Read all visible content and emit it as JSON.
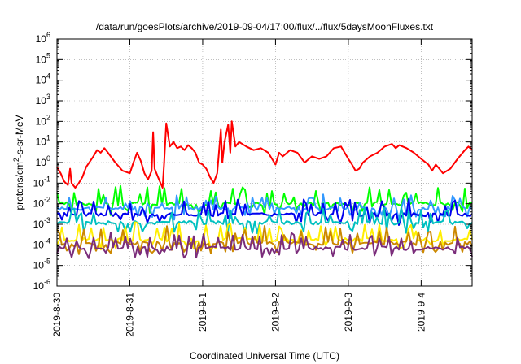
{
  "chart_data": {
    "type": "line",
    "title": "/data/run/goesPlots/archive/2019-09-04/17:00/flux/../flux/5daysMoonFluxes.txt",
    "xlabel": "Coordinated Universal Time (UTC)",
    "ylabel": {
      "pre": "protons/cm",
      "sup": "2",
      "post": "-s-sr-MeV"
    },
    "log_y": true,
    "ylim_exp": [
      -6,
      6
    ],
    "y_tick_exponents": [
      -6,
      -5,
      -4,
      -3,
      -2,
      -1,
      0,
      1,
      2,
      3,
      4,
      5,
      6
    ],
    "y_tick_base": "10",
    "x_ticks": [
      {
        "day": 0,
        "label": "2019-8-30"
      },
      {
        "day": 1,
        "label": "2019-8-31"
      },
      {
        "day": 2,
        "label": "2019-9-1"
      },
      {
        "day": 3,
        "label": "2019-9-2"
      },
      {
        "day": 4,
        "label": "2019-9-3"
      },
      {
        "day": 5,
        "label": "2019-9-4"
      }
    ],
    "x_range_days": [
      0,
      5.7
    ],
    "grid": true,
    "series": [
      {
        "color": "#ff0000",
        "width": 2,
        "points": [
          [
            0.0,
            0.6
          ],
          [
            0.05,
            0.3
          ],
          [
            0.1,
            0.12
          ],
          [
            0.15,
            0.08
          ],
          [
            0.18,
            0.5
          ],
          [
            0.2,
            0.1
          ],
          [
            0.25,
            0.06
          ],
          [
            0.3,
            0.1
          ],
          [
            0.35,
            0.2
          ],
          [
            0.4,
            0.6
          ],
          [
            0.5,
            2
          ],
          [
            0.55,
            4
          ],
          [
            0.6,
            3
          ],
          [
            0.65,
            5
          ],
          [
            0.7,
            3
          ],
          [
            0.8,
            1
          ],
          [
            0.9,
            0.4
          ],
          [
            1.0,
            0.3
          ],
          [
            1.05,
            1
          ],
          [
            1.1,
            3
          ],
          [
            1.15,
            1.2
          ],
          [
            1.2,
            0.3
          ],
          [
            1.25,
            0.15
          ],
          [
            1.3,
            0.4
          ],
          [
            1.32,
            30
          ],
          [
            1.34,
            0.5
          ],
          [
            1.4,
            0.15
          ],
          [
            1.45,
            0.06
          ],
          [
            1.47,
            0.8
          ],
          [
            1.5,
            80
          ],
          [
            1.55,
            6
          ],
          [
            1.6,
            10
          ],
          [
            1.65,
            5
          ],
          [
            1.7,
            6
          ],
          [
            1.75,
            4
          ],
          [
            1.8,
            7
          ],
          [
            1.85,
            5
          ],
          [
            1.9,
            3
          ],
          [
            1.95,
            1
          ],
          [
            2.0,
            0.8
          ],
          [
            2.05,
            0.5
          ],
          [
            2.1,
            0.2
          ],
          [
            2.15,
            0.1
          ],
          [
            2.2,
            0.3
          ],
          [
            2.25,
            40
          ],
          [
            2.27,
            1
          ],
          [
            2.3,
            10
          ],
          [
            2.35,
            70
          ],
          [
            2.38,
            3
          ],
          [
            2.4,
            100
          ],
          [
            2.45,
            6
          ],
          [
            2.5,
            10
          ],
          [
            2.6,
            6
          ],
          [
            2.7,
            4
          ],
          [
            2.8,
            5
          ],
          [
            2.9,
            3
          ],
          [
            3.0,
            0.8
          ],
          [
            3.05,
            3
          ],
          [
            3.1,
            2
          ],
          [
            3.2,
            4
          ],
          [
            3.3,
            3
          ],
          [
            3.4,
            1
          ],
          [
            3.5,
            2
          ],
          [
            3.6,
            1.5
          ],
          [
            3.7,
            2
          ],
          [
            3.8,
            5
          ],
          [
            3.9,
            6
          ],
          [
            3.95,
            3
          ],
          [
            4.0,
            1.5
          ],
          [
            4.05,
            0.8
          ],
          [
            4.1,
            0.4
          ],
          [
            4.15,
            0.5
          ],
          [
            4.2,
            1
          ],
          [
            4.3,
            2
          ],
          [
            4.4,
            3
          ],
          [
            4.5,
            6
          ],
          [
            4.6,
            8
          ],
          [
            4.65,
            5
          ],
          [
            4.7,
            7
          ],
          [
            4.8,
            5
          ],
          [
            4.9,
            3
          ],
          [
            5.0,
            1.5
          ],
          [
            5.1,
            0.8
          ],
          [
            5.15,
            0.4
          ],
          [
            5.2,
            0.8
          ],
          [
            5.25,
            0.5
          ],
          [
            5.3,
            0.3
          ],
          [
            5.4,
            0.5
          ],
          [
            5.5,
            1.5
          ],
          [
            5.6,
            4
          ],
          [
            5.65,
            6
          ],
          [
            5.7,
            4
          ]
        ]
      },
      {
        "color": "#00ff00",
        "width": 2,
        "base": 0.01,
        "amp": 4,
        "seed": 3
      },
      {
        "color": "#3399ff",
        "width": 2,
        "base": 0.006,
        "amp": 2.5,
        "seed": 11
      },
      {
        "color": "#0000ee",
        "width": 2,
        "base": 0.003,
        "amp": 3,
        "seed": 5
      },
      {
        "color": "#00c0c0",
        "width": 2,
        "base": 0.0012,
        "amp": 3,
        "seed": 9
      },
      {
        "color": "#ffee00",
        "width": 2,
        "base": 0.00018,
        "amp": 4,
        "seed": 7
      },
      {
        "color": "#cc8800",
        "width": 2,
        "base": 0.00012,
        "amp": 4,
        "seed": 13
      },
      {
        "color": "#7b2d7b",
        "width": 2,
        "base": 7e-05,
        "amp": 3.5,
        "seed": 17
      }
    ]
  }
}
